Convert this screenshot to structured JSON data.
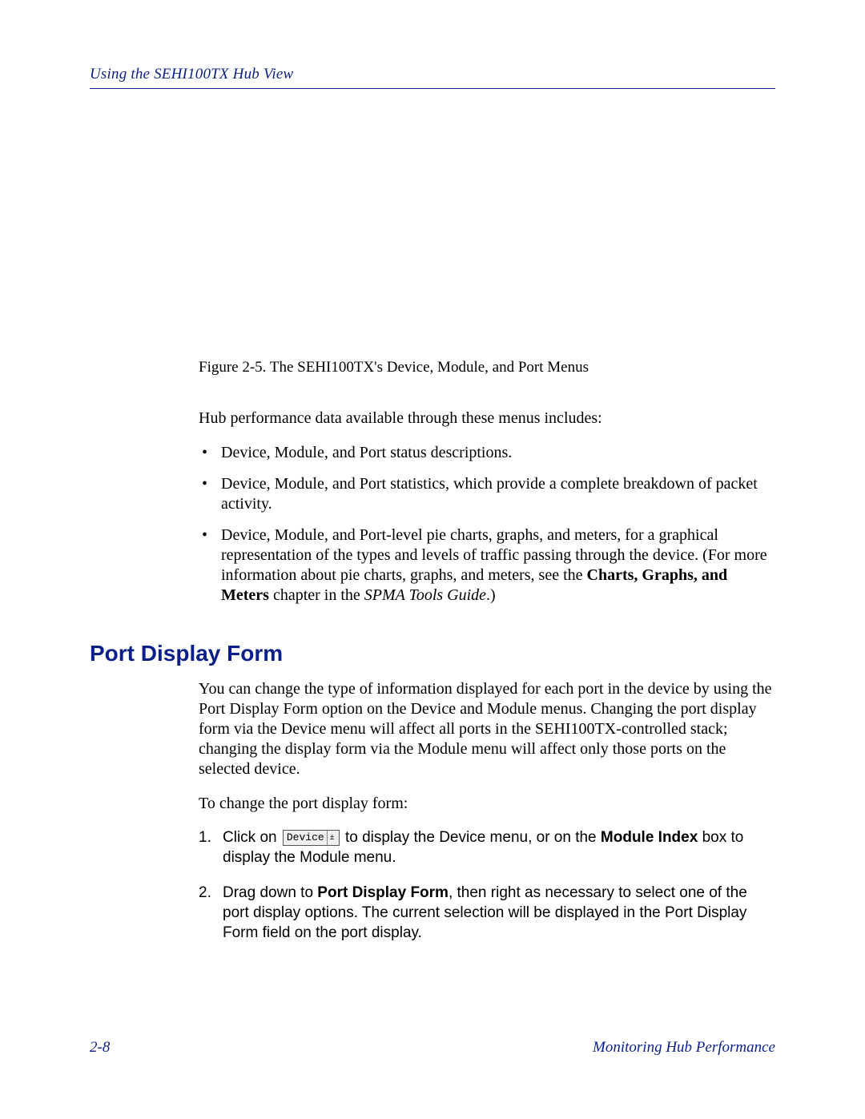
{
  "colors": {
    "accent": "#0b1f8a",
    "text": "#000000",
    "bg": "#ffffff"
  },
  "page": {
    "running_head": "Using the SEHI100TX Hub View",
    "figure_caption": "Figure 2-5.  The SEHI100TX's Device, Module, and Port Menus",
    "intro_line": "Hub performance data available through these menus includes:",
    "bullets": {
      "b1": "Device, Module, and Port status descriptions.",
      "b2": "Device, Module, and Port statistics, which provide a complete breakdown of packet activity.",
      "b3_pre": "Device, Module, and Port-level pie charts, graphs, and meters, for a graphical representation of the types and levels of traffic passing through the device. (For more information about pie charts, graphs, and meters, see the ",
      "b3_bold": "Charts, Graphs, and Meters",
      "b3_mid": " chapter in the ",
      "b3_ital": "SPMA Tools Guide",
      "b3_post": ".)"
    },
    "section_heading": "Port Display Form",
    "section_para1": "You can change the type of information displayed for each port in the device by using the Port Display Form option on the Device and Module menus. Changing the port display form via the Device menu will affect all ports in the SEHI100TX-controlled stack; changing the display form via the Module menu will affect only those ports on the selected device.",
    "section_para2": "To change the port display form:",
    "steps": {
      "s1_pre": "Click on ",
      "s1_button_label": "Device",
      "s1_mid": " to display the Device menu, or on the ",
      "s1_bold": "Module Index",
      "s1_post": " box to display the Module menu.",
      "s2_pre": "Drag down to ",
      "s2_bold": "Port Display Form",
      "s2_post": ", then right as necessary to select one of the port display options. The current selection will be displayed in the Port Display Form field on the port display."
    },
    "footer_left": "2-8",
    "footer_right": "Monitoring Hub Performance"
  }
}
